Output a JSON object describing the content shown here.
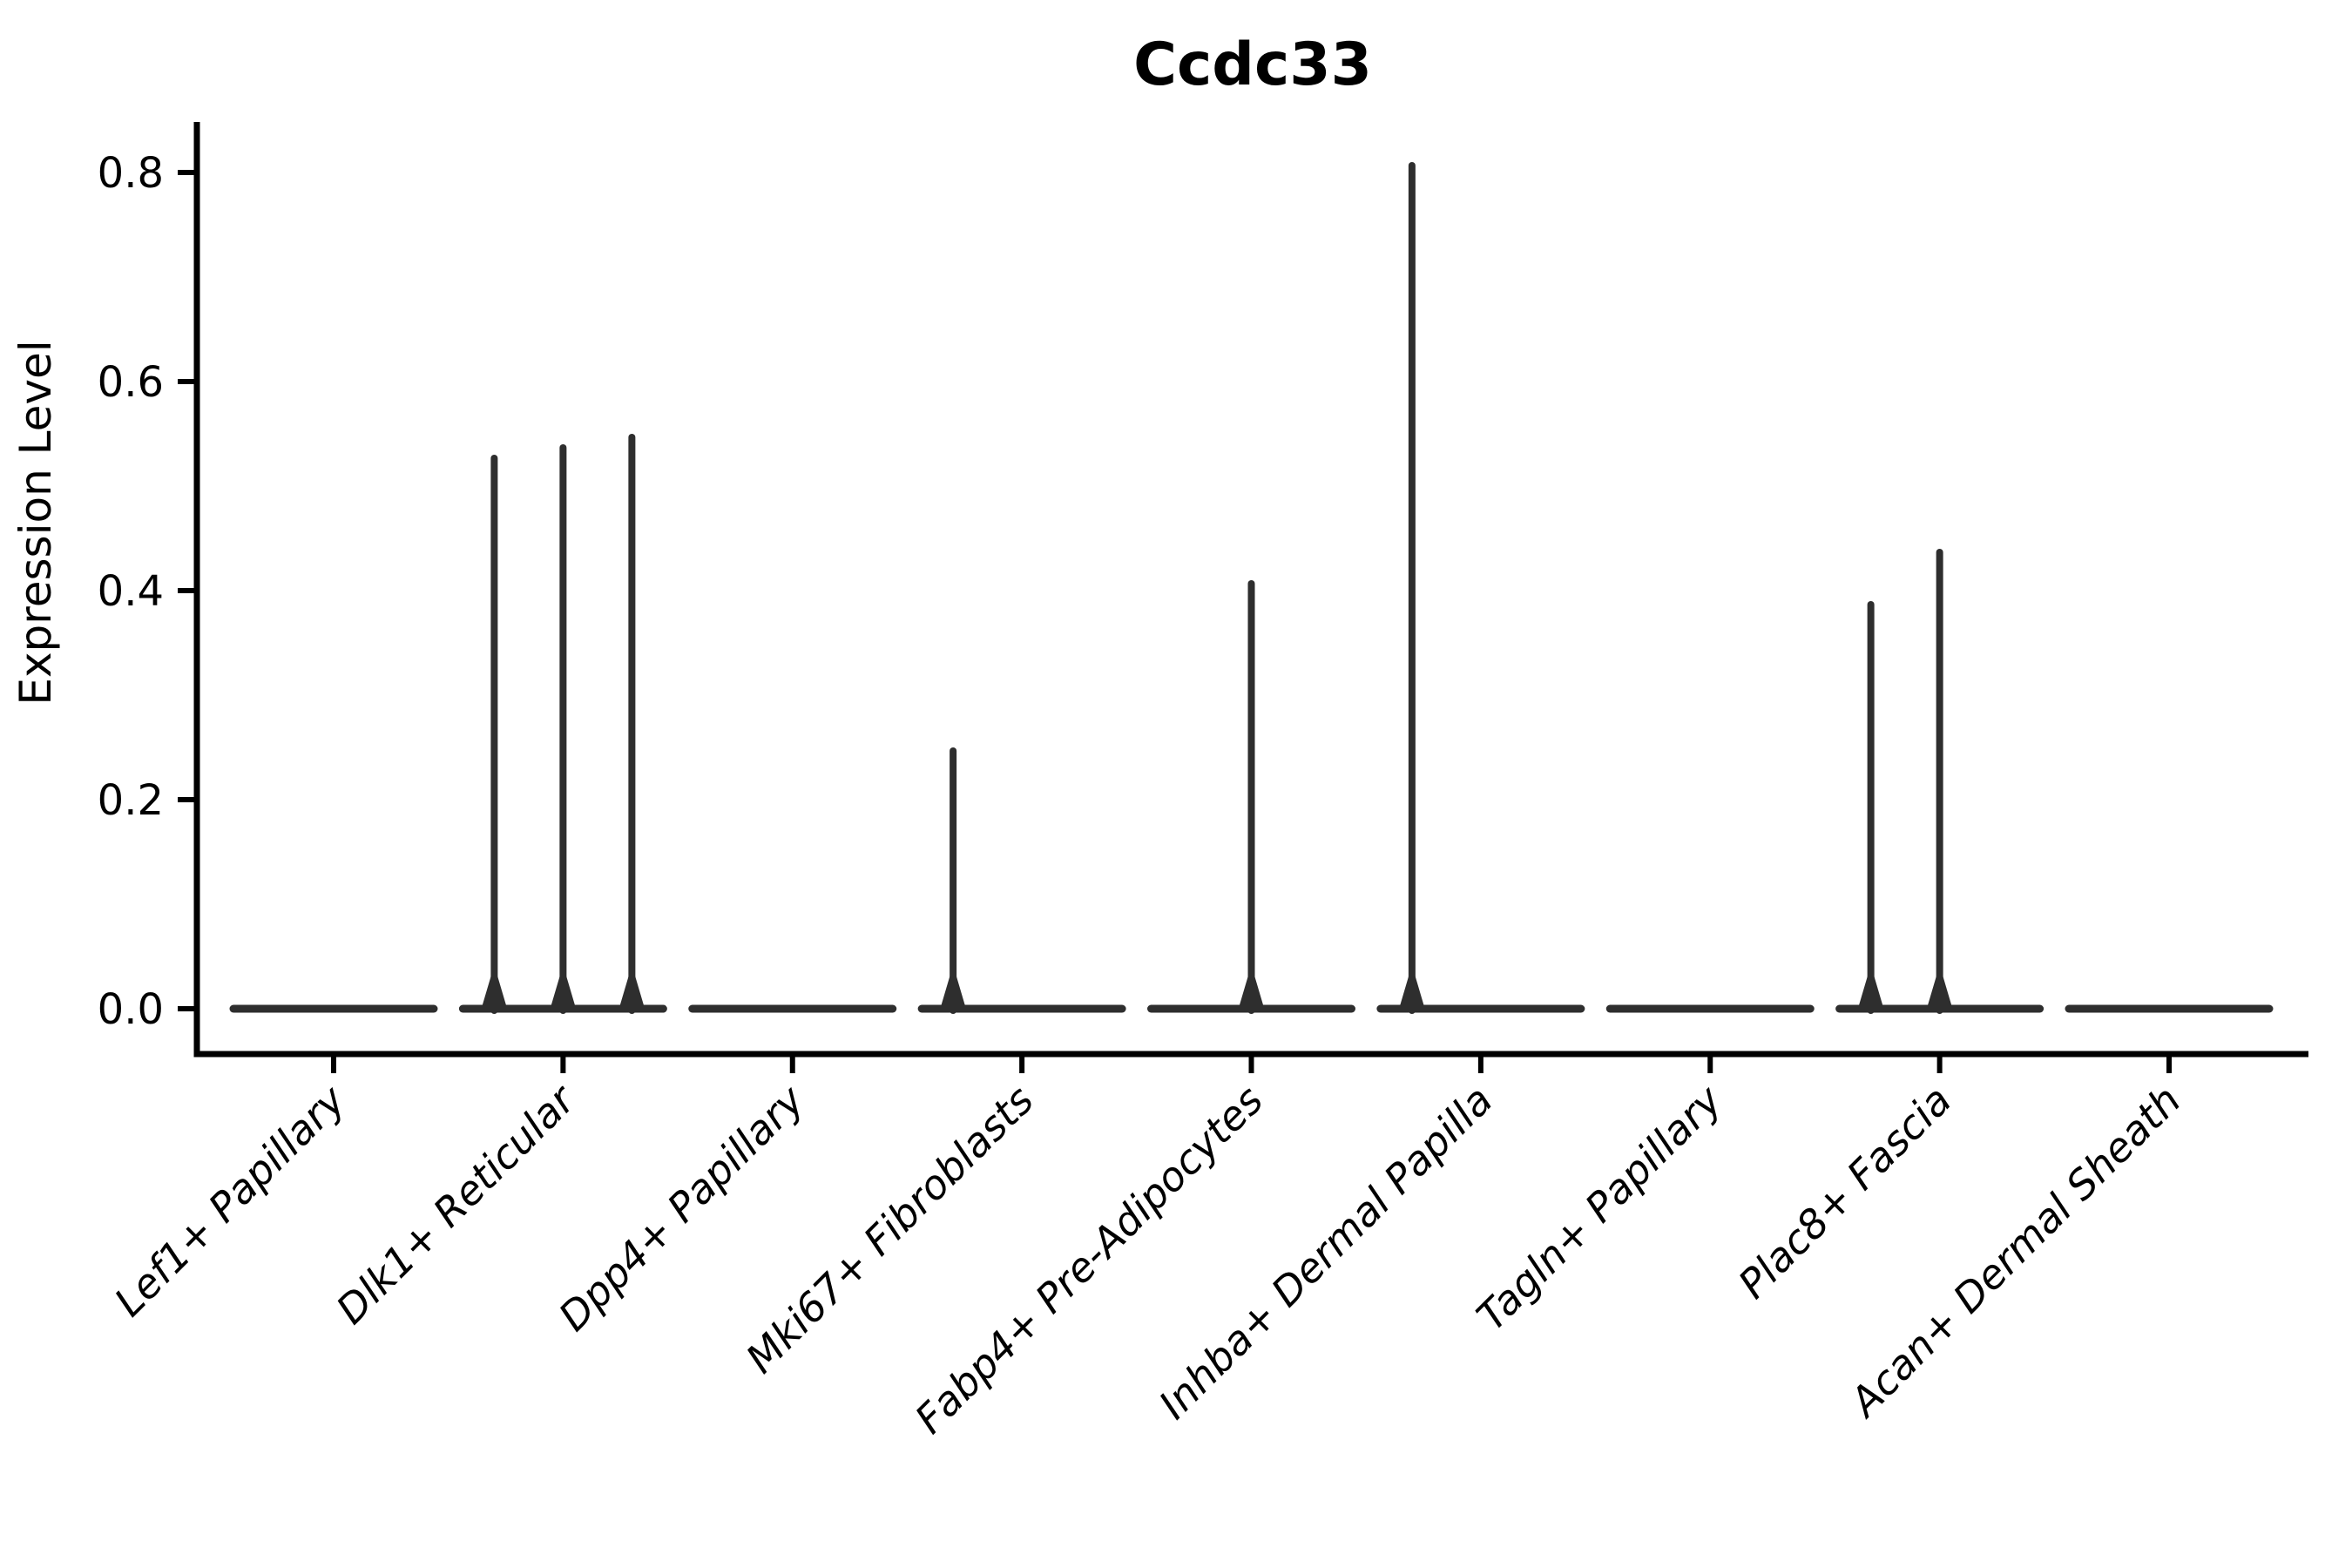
{
  "chart_data": {
    "type": "violin",
    "title": "Ccdc33",
    "xlabel": "",
    "ylabel": "Expression Level",
    "ylim": [
      0.0,
      0.85
    ],
    "yticks": [
      0.0,
      0.2,
      0.4,
      0.6,
      0.8
    ],
    "ytick_labels": [
      "0.0",
      "0.2",
      "0.4",
      "0.6",
      "0.8"
    ],
    "grid": false,
    "legend_position": "none",
    "categories": [
      "Lef1+ Papillary",
      "Dlk1+ Reticular",
      "Dpp4+ Papillary",
      "Mki67+ Fibroblasts",
      "Fabp4+ Pre-Adipocytes",
      "Inhba+ Dermal Papilla",
      "Tagln+ Papillary",
      "Plac8+ Fascia",
      "Acan+ Dermal Sheath"
    ],
    "violins": [
      {
        "category": "Lef1+ Papillary",
        "baseline": 0.0,
        "spikes": []
      },
      {
        "category": "Dlk1+ Reticular",
        "baseline": 0.0,
        "spikes": [
          {
            "offset": -1,
            "max": 0.53
          },
          {
            "offset": 0,
            "max": 0.54
          },
          {
            "offset": 1,
            "max": 0.55
          }
        ]
      },
      {
        "category": "Dpp4+ Papillary",
        "baseline": 0.0,
        "spikes": []
      },
      {
        "category": "Mki67+ Fibroblasts",
        "baseline": 0.0,
        "spikes": [
          {
            "offset": -1,
            "max": 0.25
          }
        ]
      },
      {
        "category": "Fabp4+ Pre-Adipocytes",
        "baseline": 0.0,
        "spikes": [
          {
            "offset": 0,
            "max": 0.41
          }
        ]
      },
      {
        "category": "Inhba+ Dermal Papilla",
        "baseline": 0.0,
        "spikes": [
          {
            "offset": -1,
            "max": 0.81
          }
        ]
      },
      {
        "category": "Tagln+ Papillary",
        "baseline": 0.0,
        "spikes": []
      },
      {
        "category": "Plac8+ Fascia",
        "baseline": 0.0,
        "spikes": [
          {
            "offset": -1,
            "max": 0.39
          },
          {
            "offset": 0,
            "max": 0.44
          }
        ]
      },
      {
        "category": "Acan+ Dermal Sheath",
        "baseline": 0.0,
        "spikes": []
      }
    ],
    "colors": {
      "violin": "#2e2e2e",
      "axis": "#000000",
      "text": "#000000",
      "background": "#ffffff"
    }
  }
}
